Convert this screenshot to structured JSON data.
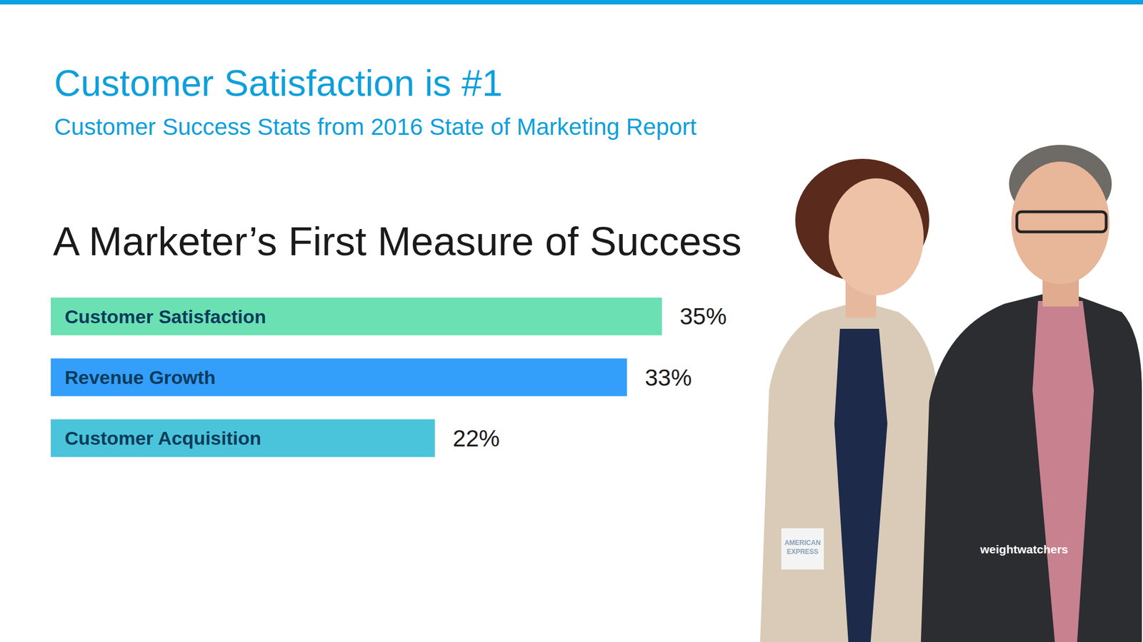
{
  "header": {
    "title": "Customer Satisfaction is #1",
    "subtitle": "Customer Success Stats from 2016 State of Marketing Report"
  },
  "logos": [
    "AMERICAN EXPRESS",
    "weightwatchers"
  ],
  "chart_data": {
    "type": "bar",
    "orientation": "horizontal",
    "title": "A Marketer’s First Measure of Success",
    "categories": [
      "Customer Satisfaction",
      "Revenue Growth",
      "Customer Acquisition"
    ],
    "values": [
      35,
      33,
      22
    ],
    "value_labels": [
      "35%",
      "33%",
      "22%"
    ],
    "colors": [
      "#6be0b3",
      "#339ffb",
      "#4ac4da"
    ],
    "xlim": [
      0,
      35
    ],
    "data_labels": true,
    "tick_labels": "y",
    "grid": false
  }
}
